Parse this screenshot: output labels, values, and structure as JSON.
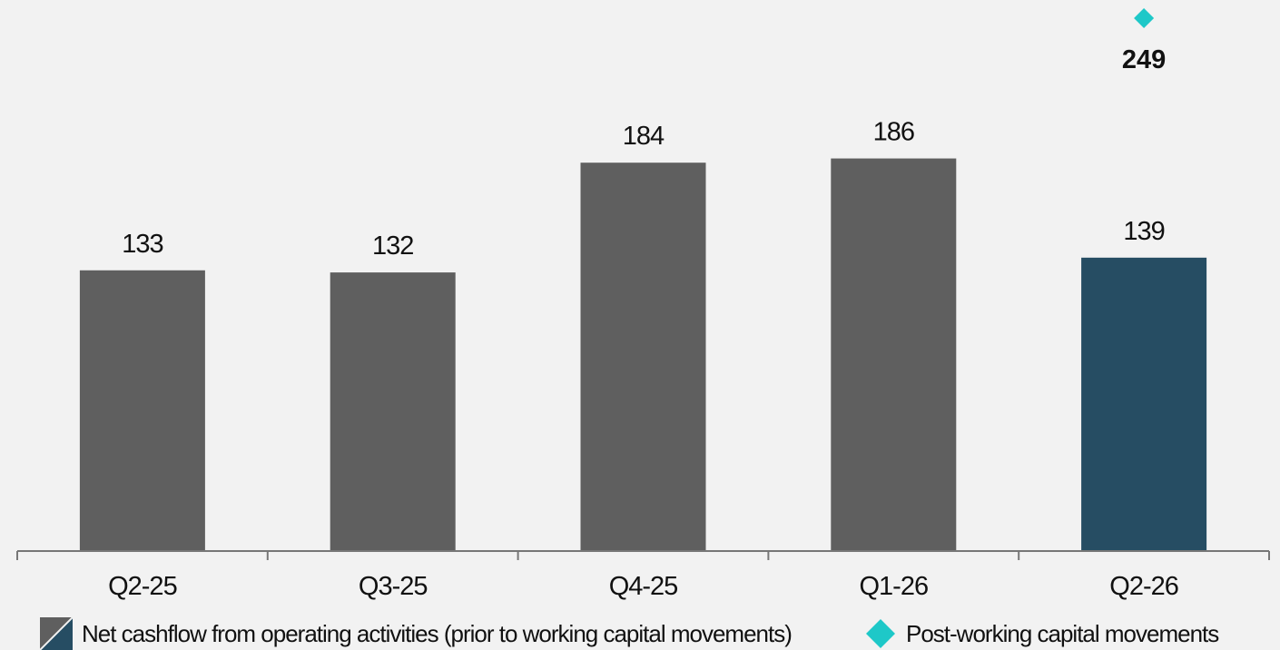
{
  "chart_data": {
    "type": "bar",
    "categories": [
      "Q2-25",
      "Q3-25",
      "Q4-25",
      "Q1-26",
      "Q2-26"
    ],
    "series": [
      {
        "name": "Net cashflow from operating activities (prior to working capital movements)",
        "type": "bar",
        "values": [
          133,
          132,
          184,
          186,
          139
        ]
      },
      {
        "name": "Post-working capital movements",
        "type": "scatter",
        "marker": "diamond",
        "values": [
          null,
          null,
          null,
          null,
          249
        ]
      }
    ],
    "data_labels": [
      "133",
      "132",
      "184",
      "186",
      "139",
      "249"
    ],
    "title": "",
    "xlabel": "",
    "ylabel": "",
    "ylim": [
      0,
      260
    ],
    "grid": false,
    "legend_position": "bottom",
    "colors": {
      "bar": "#5f5f5f",
      "bar_highlight": "#264d63",
      "marker": "#1ec8c8",
      "axis": "#777777",
      "background": "#f2f2f2"
    }
  },
  "legend": {
    "items": [
      {
        "label": "Net cashflow from operating activities (prior to working capital movements)",
        "icon": "split-swatch-icon"
      },
      {
        "label": "Post-working capital movements",
        "icon": "diamond-icon"
      }
    ]
  }
}
